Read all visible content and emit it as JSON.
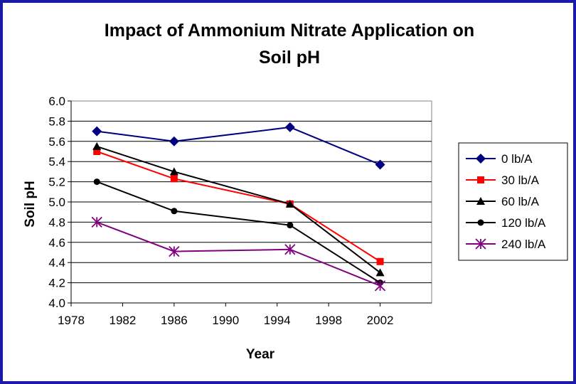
{
  "chart_data": {
    "type": "line",
    "title_line1": "Impact of Ammonium Nitrate Application on",
    "title_line2": "Soil pH",
    "xlabel": "Year",
    "ylabel": "Soil pH",
    "xlim": [
      1978,
      2006
    ],
    "ylim": [
      4.0,
      6.0
    ],
    "x_ticks": [
      1978,
      1982,
      1986,
      1990,
      1994,
      1998,
      2002
    ],
    "y_ticks": [
      "4.0",
      "4.2",
      "4.4",
      "4.6",
      "4.8",
      "5.0",
      "5.2",
      "5.4",
      "5.6",
      "5.8",
      "6.0"
    ],
    "grid": "horizontal",
    "legend_position": "right",
    "x": [
      1980,
      1986,
      1995,
      2002
    ],
    "series": [
      {
        "name": "0 lb/A",
        "color": "#000080",
        "marker": "diamond",
        "values": [
          5.7,
          5.6,
          5.74,
          5.37
        ]
      },
      {
        "name": "30 lb/A",
        "color": "#ff0000",
        "marker": "square",
        "values": [
          5.5,
          5.23,
          4.98,
          4.41
        ]
      },
      {
        "name": "60 lb/A",
        "color": "#000000",
        "marker": "triangle",
        "values": [
          5.55,
          5.3,
          4.98,
          4.3
        ]
      },
      {
        "name": "120 lb/A",
        "color": "#000000",
        "marker": "circle",
        "values": [
          5.2,
          4.91,
          4.77,
          4.2
        ]
      },
      {
        "name": "240 lb/A",
        "color": "#800080",
        "marker": "star",
        "values": [
          4.8,
          4.51,
          4.53,
          4.17
        ]
      }
    ]
  }
}
